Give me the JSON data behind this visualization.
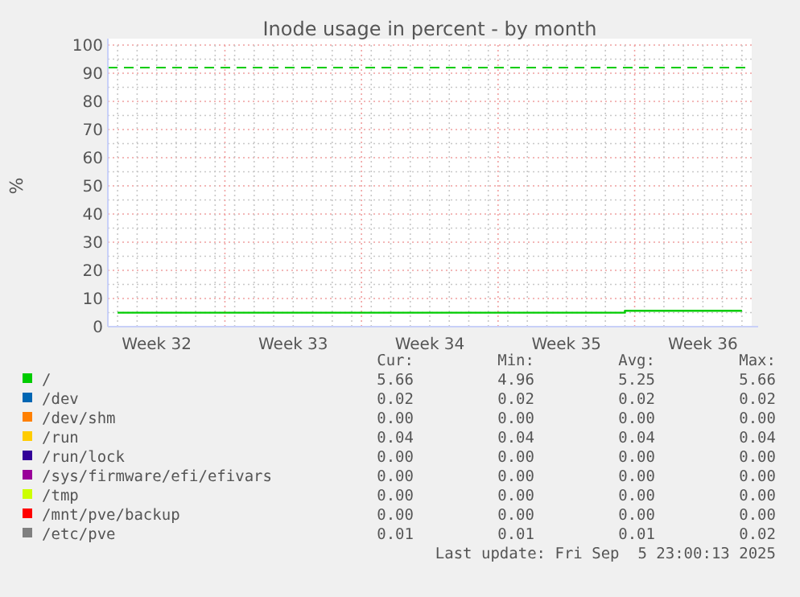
{
  "chart_data": {
    "type": "step",
    "title": "Inode usage in percent - by month",
    "ylabel": "%",
    "categories": [
      null,
      null,
      "Week 32",
      null,
      null,
      null,
      null,
      null,
      null,
      "Week 33",
      null,
      null,
      null,
      null,
      null,
      null,
      "Week 34",
      null,
      null,
      null,
      null,
      null,
      null,
      "Week 35",
      null,
      null,
      null,
      null,
      null,
      null,
      "Week 36",
      null,
      null
    ],
    "ylim": [
      0,
      100
    ],
    "yticks": [
      0,
      10,
      20,
      30,
      40,
      50,
      60,
      70,
      80,
      90,
      100
    ],
    "grid": true,
    "legend": "bottom",
    "line_style": "solid",
    "ref_lines": [
      {
        "axis": "y",
        "value": 92,
        "color": "#00cc00",
        "line_style": "dashed"
      }
    ],
    "series": [
      {
        "name": "/",
        "color": "#00cc00",
        "values": [
          4.96,
          4.96,
          4.96,
          4.96,
          4.96,
          4.96,
          4.96,
          4.96,
          4.96,
          4.96,
          4.96,
          4.96,
          4.96,
          4.96,
          4.96,
          4.96,
          4.96,
          4.96,
          4.96,
          4.96,
          4.96,
          4.96,
          4.96,
          4.96,
          4.96,
          4.96,
          5.66,
          5.66,
          5.66,
          5.66,
          5.66,
          5.66,
          5.66
        ]
      },
      {
        "name": "/dev",
        "color": "#0066b3",
        "values": [
          null,
          null,
          null,
          null,
          null,
          null,
          null,
          null,
          null,
          null,
          null,
          null,
          null,
          null,
          null,
          null,
          null,
          null,
          null,
          null,
          null,
          null,
          null,
          null,
          null,
          null,
          null,
          null,
          null,
          null,
          null,
          null,
          null
        ]
      },
      {
        "name": "/dev/shm",
        "color": "#ff8000",
        "values": [
          null,
          null,
          null,
          null,
          null,
          null,
          null,
          null,
          null,
          null,
          null,
          null,
          null,
          null,
          null,
          null,
          null,
          null,
          null,
          null,
          null,
          null,
          null,
          null,
          null,
          null,
          null,
          null,
          null,
          null,
          null,
          null,
          null
        ]
      },
      {
        "name": "/run",
        "color": "#ffcc00",
        "values": [
          null,
          null,
          null,
          null,
          null,
          null,
          null,
          null,
          null,
          null,
          null,
          null,
          null,
          null,
          null,
          null,
          null,
          null,
          null,
          null,
          null,
          null,
          null,
          null,
          null,
          null,
          null,
          null,
          null,
          null,
          null,
          null,
          null
        ]
      },
      {
        "name": "/run/lock",
        "color": "#330099",
        "values": [
          null,
          null,
          null,
          null,
          null,
          null,
          null,
          null,
          null,
          null,
          null,
          null,
          null,
          null,
          null,
          null,
          null,
          null,
          null,
          null,
          null,
          null,
          null,
          null,
          null,
          null,
          null,
          null,
          null,
          null,
          null,
          null,
          null
        ]
      },
      {
        "name": "/sys/firmware/efi/efivars",
        "color": "#990099",
        "values": [
          null,
          null,
          null,
          null,
          null,
          null,
          null,
          null,
          null,
          null,
          null,
          null,
          null,
          null,
          null,
          null,
          null,
          null,
          null,
          null,
          null,
          null,
          null,
          null,
          null,
          null,
          null,
          null,
          null,
          null,
          null,
          null,
          null
        ]
      },
      {
        "name": "/tmp",
        "color": "#ccff00",
        "values": [
          null,
          null,
          null,
          null,
          null,
          null,
          null,
          null,
          null,
          null,
          null,
          null,
          null,
          null,
          null,
          null,
          null,
          null,
          null,
          null,
          null,
          null,
          null,
          null,
          null,
          null,
          null,
          null,
          null,
          null,
          null,
          null,
          null
        ]
      },
      {
        "name": "/mnt/pve/backup",
        "color": "#ff0000",
        "values": [
          null,
          null,
          null,
          null,
          null,
          null,
          null,
          null,
          null,
          null,
          null,
          null,
          null,
          null,
          null,
          null,
          null,
          null,
          null,
          null,
          null,
          null,
          null,
          null,
          null,
          null,
          null,
          null,
          null,
          null,
          null,
          null,
          null
        ]
      },
      {
        "name": "/etc/pve",
        "color": "#808080",
        "values": [
          null,
          null,
          null,
          null,
          null,
          null,
          null,
          null,
          null,
          null,
          null,
          null,
          null,
          null,
          null,
          null,
          null,
          null,
          null,
          null,
          null,
          null,
          null,
          null,
          null,
          null,
          null,
          null,
          null,
          null,
          null,
          null,
          null
        ]
      }
    ],
    "annotations": [
      "Cur:",
      "Min:",
      "Avg:",
      "Max:",
      "5.66",
      "4.96",
      "5.25",
      "5.66",
      "0.02",
      "0.02",
      "0.02",
      "0.02",
      "0.00",
      "0.00",
      "0.00",
      "0.00",
      "0.04",
      "0.04",
      "0.04",
      "0.04",
      "0.00",
      "0.00",
      "0.00",
      "0.00",
      "0.00",
      "0.00",
      "0.00",
      "0.00",
      "0.00",
      "0.00",
      "0.00",
      "0.00",
      "0.00",
      "0.00",
      "0.00",
      "0.00",
      "0.01",
      "0.01",
      "0.01",
      "0.02",
      "Last update: Fri Sep  5 23:00:13 2025"
    ]
  }
}
